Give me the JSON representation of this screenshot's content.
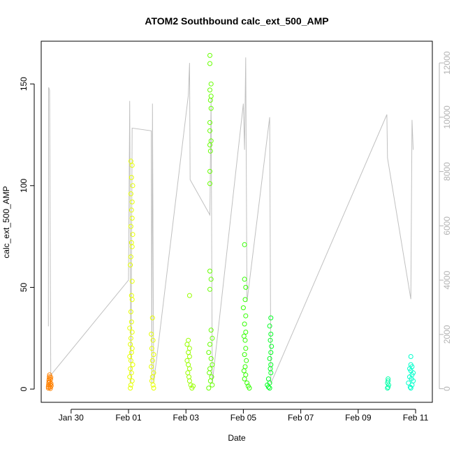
{
  "chart_data": {
    "type": "scatter",
    "title": "ATOM2 Southbound calc_ext_500_AMP",
    "xlabel": "Date",
    "ylabel": "calc_ext_500_AMP",
    "xlim": [
      "2024-01-28T23:00",
      "2024-02-11T14:00"
    ],
    "ylim": [
      -6.5,
      171
    ],
    "x_ticks": [
      {
        "label": "Jan 30",
        "date": "2024-01-30"
      },
      {
        "label": "Feb 01",
        "date": "2024-02-01"
      },
      {
        "label": "Feb 03",
        "date": "2024-02-03"
      },
      {
        "label": "Feb 05",
        "date": "2024-02-05"
      },
      {
        "label": "Feb 07",
        "date": "2024-02-07"
      },
      {
        "label": "Feb 09",
        "date": "2024-02-09"
      },
      {
        "label": "Feb 11",
        "date": "2024-02-11"
      }
    ],
    "y_ticks": [
      0,
      50,
      100,
      150
    ],
    "y2_ticks": [
      0,
      2000,
      4000,
      6000,
      8000,
      10000,
      12000
    ],
    "y2lim": [
      -500,
      12800
    ],
    "series": [
      {
        "color": "#ff8000",
        "points": [
          [
            "2024-01-29T05:00",
            0.5
          ],
          [
            "2024-01-29T05:00",
            1.2
          ],
          [
            "2024-01-29T05:10",
            2.0
          ],
          [
            "2024-01-29T05:20",
            3.1
          ],
          [
            "2024-01-29T05:30",
            4.2
          ],
          [
            "2024-01-29T05:40",
            5.0
          ],
          [
            "2024-01-29T05:50",
            6.0
          ],
          [
            "2024-01-29T06:00",
            7.0
          ],
          [
            "2024-01-29T06:10",
            3.5
          ],
          [
            "2024-01-29T06:20",
            2.2
          ],
          [
            "2024-01-29T06:30",
            1.0
          ],
          [
            "2024-01-29T06:40",
            0.3
          ],
          [
            "2024-01-29T06:50",
            4.8
          ],
          [
            "2024-01-29T07:00",
            5.8
          ],
          [
            "2024-01-29T07:10",
            2.7
          ],
          [
            "2024-01-29T07:20",
            1.6
          ]
        ]
      },
      {
        "color": "#e6ff00",
        "points": [
          [
            "2024-02-01T02:00",
            112
          ],
          [
            "2024-02-01T03:00",
            110
          ],
          [
            "2024-02-01T02:30",
            104
          ],
          [
            "2024-02-01T03:30",
            100
          ],
          [
            "2024-02-01T02:00",
            96
          ],
          [
            "2024-02-01T03:00",
            92
          ],
          [
            "2024-02-01T02:30",
            88
          ],
          [
            "2024-02-01T03:00",
            84
          ],
          [
            "2024-02-01T02:00",
            80
          ],
          [
            "2024-02-01T03:30",
            76
          ],
          [
            "2024-02-01T02:30",
            72
          ],
          [
            "2024-02-01T03:00",
            70
          ],
          [
            "2024-02-01T02:00",
            65
          ],
          [
            "2024-02-01T01:30",
            61
          ],
          [
            "2024-02-01T03:00",
            53
          ],
          [
            "2024-02-01T02:30",
            46
          ],
          [
            "2024-02-01T03:00",
            44
          ],
          [
            "2024-02-01T02:00",
            38
          ],
          [
            "2024-02-01T02:30",
            33
          ],
          [
            "2024-02-01T01:00",
            30
          ],
          [
            "2024-02-01T03:00",
            28
          ],
          [
            "2024-02-01T02:00",
            25
          ],
          [
            "2024-02-01T01:30",
            22
          ],
          [
            "2024-02-01T03:00",
            20
          ],
          [
            "2024-02-01T02:30",
            18
          ],
          [
            "2024-02-01T01:00",
            16
          ],
          [
            "2024-02-01T02:00",
            14
          ],
          [
            "2024-02-01T03:30",
            12
          ],
          [
            "2024-02-01T01:30",
            10
          ],
          [
            "2024-02-01T02:30",
            8
          ],
          [
            "2024-02-01T01:00",
            6
          ],
          [
            "2024-02-01T03:00",
            4
          ],
          [
            "2024-02-01T02:00",
            2
          ],
          [
            "2024-02-01T01:30",
            0.5
          ],
          [
            "2024-02-01T20:00",
            35
          ],
          [
            "2024-02-01T19:00",
            27
          ],
          [
            "2024-02-01T20:30",
            24
          ],
          [
            "2024-02-01T19:30",
            20
          ],
          [
            "2024-02-01T21:00",
            17
          ],
          [
            "2024-02-01T20:00",
            14
          ],
          [
            "2024-02-01T19:00",
            11
          ],
          [
            "2024-02-01T21:00",
            8
          ],
          [
            "2024-02-01T20:00",
            6
          ],
          [
            "2024-02-01T19:30",
            4
          ],
          [
            "2024-02-01T20:30",
            2
          ],
          [
            "2024-02-01T21:00",
            0.5
          ]
        ]
      },
      {
        "color": "#99ff00",
        "points": [
          [
            "2024-02-03T03:00",
            46
          ],
          [
            "2024-02-03T02:00",
            24
          ],
          [
            "2024-02-03T01:00",
            22
          ],
          [
            "2024-02-03T03:00",
            20
          ],
          [
            "2024-02-03T02:00",
            18
          ],
          [
            "2024-02-03T03:00",
            16
          ],
          [
            "2024-02-03T01:00",
            14
          ],
          [
            "2024-02-03T02:00",
            12
          ],
          [
            "2024-02-03T03:00",
            10
          ],
          [
            "2024-02-03T01:30",
            8
          ],
          [
            "2024-02-03T02:30",
            6
          ],
          [
            "2024-02-03T03:00",
            4
          ],
          [
            "2024-02-03T04:00",
            2
          ],
          [
            "2024-02-03T05:00",
            0.5
          ],
          [
            "2024-02-03T06:00",
            1.5
          ]
        ]
      },
      {
        "color": "#66ff00",
        "points": [
          [
            "2024-02-03T20:00",
            164
          ],
          [
            "2024-02-03T20:00",
            160
          ],
          [
            "2024-02-03T21:00",
            150
          ],
          [
            "2024-02-03T20:00",
            147
          ],
          [
            "2024-02-03T21:00",
            144
          ],
          [
            "2024-02-03T20:30",
            142
          ],
          [
            "2024-02-03T21:00",
            138
          ],
          [
            "2024-02-03T20:00",
            131
          ],
          [
            "2024-02-03T20:00",
            127
          ],
          [
            "2024-02-03T21:00",
            122
          ],
          [
            "2024-02-03T20:00",
            120
          ],
          [
            "2024-02-03T20:30",
            117
          ],
          [
            "2024-02-03T20:00",
            107
          ],
          [
            "2024-02-03T20:00",
            101
          ],
          [
            "2024-02-03T20:00",
            58
          ],
          [
            "2024-02-03T21:00",
            54
          ],
          [
            "2024-02-03T20:00",
            49
          ],
          [
            "2024-02-03T21:00",
            29
          ],
          [
            "2024-02-03T22:00",
            25
          ],
          [
            "2024-02-03T20:00",
            22
          ],
          [
            "2024-02-03T19:00",
            18
          ],
          [
            "2024-02-03T21:00",
            15
          ],
          [
            "2024-02-03T22:00",
            12
          ],
          [
            "2024-02-03T20:00",
            10
          ],
          [
            "2024-02-03T19:30",
            8
          ],
          [
            "2024-02-03T21:30",
            6
          ],
          [
            "2024-02-03T20:30",
            4
          ],
          [
            "2024-02-03T22:00",
            2
          ],
          [
            "2024-02-03T19:00",
            0.5
          ]
        ]
      },
      {
        "color": "#33ff00",
        "points": [
          [
            "2024-02-05T01:00",
            71
          ],
          [
            "2024-02-05T01:00",
            54
          ],
          [
            "2024-02-05T02:00",
            50
          ],
          [
            "2024-02-05T01:30",
            44
          ],
          [
            "2024-02-05T00:00",
            40
          ],
          [
            "2024-02-05T02:00",
            36
          ],
          [
            "2024-02-05T01:00",
            32
          ],
          [
            "2024-02-05T02:00",
            28
          ],
          [
            "2024-02-05T00:30",
            26
          ],
          [
            "2024-02-05T01:30",
            24
          ],
          [
            "2024-02-05T02:00",
            20
          ],
          [
            "2024-02-05T01:00",
            17
          ],
          [
            "2024-02-05T02:30",
            14
          ],
          [
            "2024-02-05T01:30",
            11
          ],
          [
            "2024-02-05T00:30",
            9
          ],
          [
            "2024-02-05T02:00",
            7
          ],
          [
            "2024-02-05T01:00",
            5
          ],
          [
            "2024-02-05T03:00",
            3
          ],
          [
            "2024-02-05T04:00",
            1.5
          ],
          [
            "2024-02-05T05:00",
            0.5
          ]
        ]
      },
      {
        "color": "#00ff22",
        "points": [
          [
            "2024-02-05T23:00",
            35
          ],
          [
            "2024-02-05T22:00",
            31
          ],
          [
            "2024-02-05T23:00",
            27
          ],
          [
            "2024-02-05T22:30",
            24
          ],
          [
            "2024-02-05T23:30",
            21
          ],
          [
            "2024-02-05T23:00",
            18
          ],
          [
            "2024-02-05T22:00",
            15
          ],
          [
            "2024-02-05T23:00",
            12
          ],
          [
            "2024-02-05T22:30",
            10
          ],
          [
            "2024-02-05T23:00",
            8
          ],
          [
            "2024-02-05T21:00",
            5
          ],
          [
            "2024-02-05T22:00",
            3
          ],
          [
            "2024-02-05T20:00",
            2
          ],
          [
            "2024-02-05T21:00",
            1
          ],
          [
            "2024-02-05T22:00",
            0.5
          ]
        ]
      },
      {
        "color": "#00ffa8",
        "points": [
          [
            "2024-02-10T01:00",
            5
          ],
          [
            "2024-02-10T01:00",
            4
          ],
          [
            "2024-02-10T00:30",
            3
          ],
          [
            "2024-02-10T01:30",
            2
          ],
          [
            "2024-02-10T01:00",
            1
          ],
          [
            "2024-02-10T00:30",
            0.5
          ]
        ]
      },
      {
        "color": "#00ffcc",
        "points": [
          [
            "2024-02-10T20:00",
            16
          ],
          [
            "2024-02-10T20:00",
            12
          ],
          [
            "2024-02-10T21:00",
            11
          ],
          [
            "2024-02-10T19:00",
            10
          ],
          [
            "2024-02-10T20:00",
            9
          ],
          [
            "2024-02-10T22:00",
            8
          ],
          [
            "2024-02-10T21:00",
            7
          ],
          [
            "2024-02-10T19:00",
            6
          ],
          [
            "2024-02-10T20:30",
            5
          ],
          [
            "2024-02-10T22:00",
            4
          ],
          [
            "2024-02-10T18:00",
            3
          ],
          [
            "2024-02-10T21:00",
            2
          ],
          [
            "2024-02-10T19:30",
            1
          ],
          [
            "2024-02-10T20:00",
            0.5
          ]
        ]
      }
    ],
    "secondary_line": {
      "color": "#c0c0c0",
      "axis": "right",
      "points": [
        [
          "2024-01-29T05:00",
          2300
        ],
        [
          "2024-01-29T05:10",
          11100
        ],
        [
          "2024-01-29T06:00",
          11000
        ],
        [
          "2024-01-29T07:00",
          500
        ],
        [
          "2024-02-01T00:00",
          4000
        ],
        [
          "2024-02-01T01:00",
          10600
        ],
        [
          "2024-02-01T02:00",
          200
        ],
        [
          "2024-02-01T03:00",
          9600
        ],
        [
          "2024-02-01T19:00",
          9500
        ],
        [
          "2024-02-01T19:30",
          200
        ],
        [
          "2024-02-01T20:00",
          10500
        ],
        [
          "2024-02-01T21:00",
          200
        ],
        [
          "2024-02-03T02:00",
          10800
        ],
        [
          "2024-02-03T03:00",
          12000
        ],
        [
          "2024-02-03T03:30",
          7700
        ],
        [
          "2024-02-03T20:00",
          6400
        ],
        [
          "2024-02-03T21:00",
          10700
        ],
        [
          "2024-02-03T22:00",
          200
        ],
        [
          "2024-02-05T00:00",
          10500
        ],
        [
          "2024-02-05T01:00",
          8800
        ],
        [
          "2024-02-05T02:00",
          12200
        ],
        [
          "2024-02-05T03:00",
          3200
        ],
        [
          "2024-02-05T22:00",
          10000
        ],
        [
          "2024-02-05T23:00",
          200
        ],
        [
          "2024-02-10T00:00",
          10100
        ],
        [
          "2024-02-10T00:30",
          8500
        ],
        [
          "2024-02-10T20:00",
          3300
        ],
        [
          "2024-02-10T21:00",
          9900
        ],
        [
          "2024-02-10T22:00",
          8800
        ]
      ]
    }
  }
}
